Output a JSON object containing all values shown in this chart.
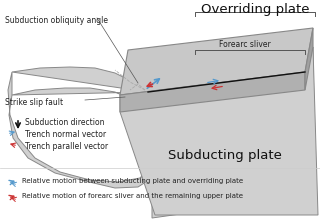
{
  "bg_color": "#ffffff",
  "overriding_plate_label": "Overriding plate",
  "forearc_sliver_label": "Forearc sliver",
  "subducting_plate_label": "Subducting plate",
  "strike_slip_fault_label": "Strike slip fault",
  "subduction_direction_label": "Subduction direction",
  "trench_normal_label": "Trench normal vector",
  "trench_parallel_label": "Trench parallel vector",
  "subduction_obliquity_label": "Subduction obliquity angle",
  "legend_blue_label": "Relative motion between subducting plate and overriding plate",
  "legend_red_label": "Relative motion of forearc sliver and the remaining upper plate",
  "plate_top_color": "#c8c8c8",
  "plate_front_color": "#b0b0b0",
  "plate_right_color": "#a0a0a0",
  "slab_color": "#d0d0d0",
  "slab_edge_color": "#888888",
  "fault_line_color": "#111111",
  "arrow_black": "#111111",
  "arrow_blue": "#5599cc",
  "arrow_red": "#cc3333"
}
